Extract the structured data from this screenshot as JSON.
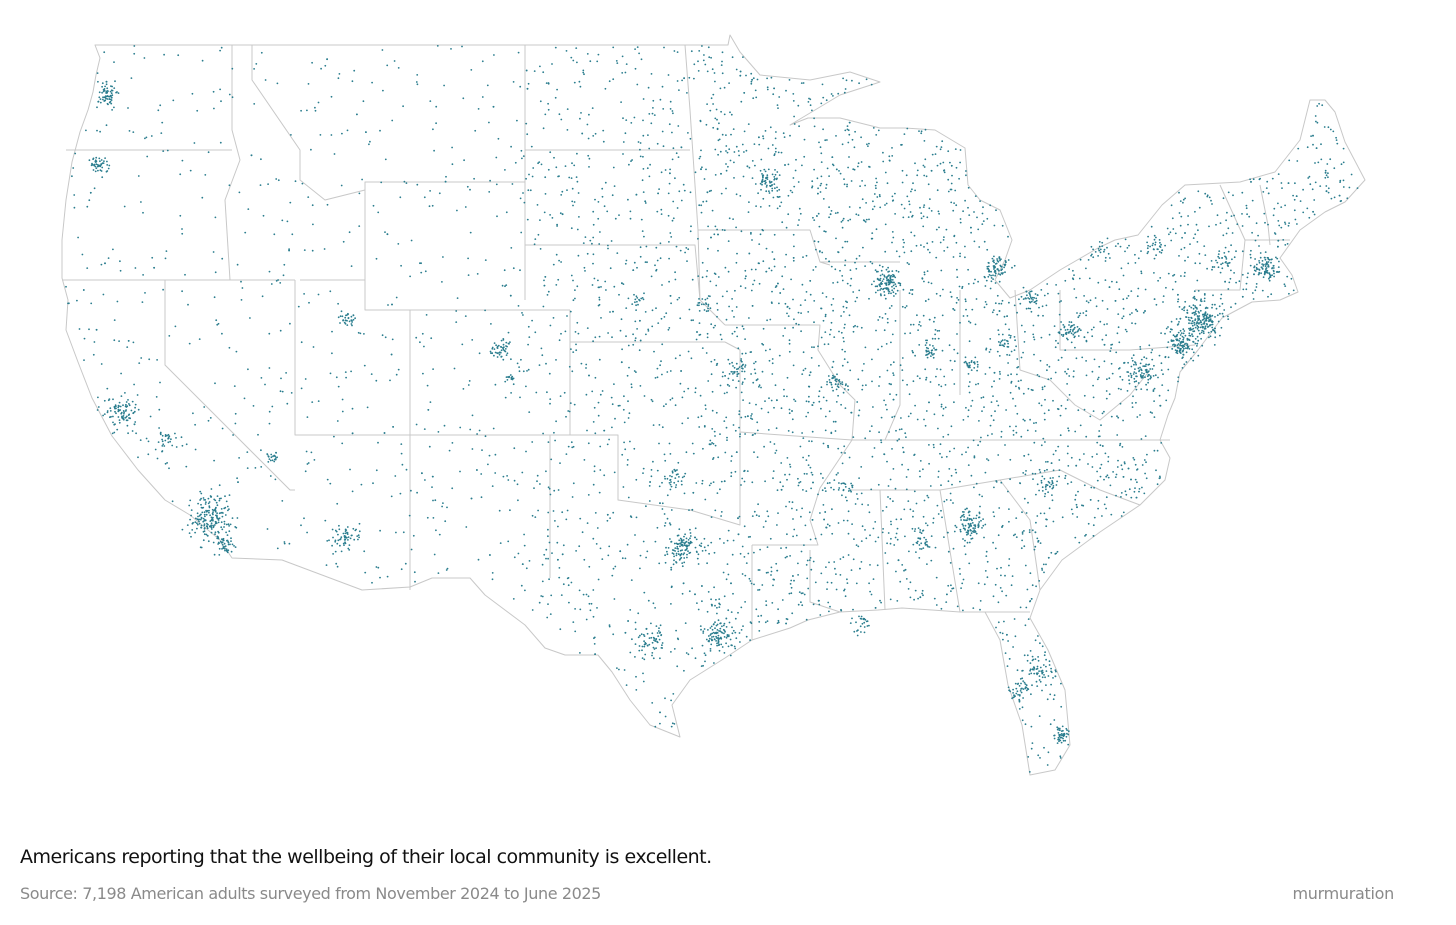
{
  "caption": {
    "title": "Americans reporting that the wellbeing of their local community is excellent.",
    "source": "Source: 7,198 American adults surveyed from November 2024 to June 2025",
    "brand": "murmuration"
  },
  "map": {
    "region": "Contiguous United States",
    "style": "dot density",
    "dot_color": "#2a7d8e",
    "border_color": "#c8c8c8",
    "background": "#ffffff"
  }
}
